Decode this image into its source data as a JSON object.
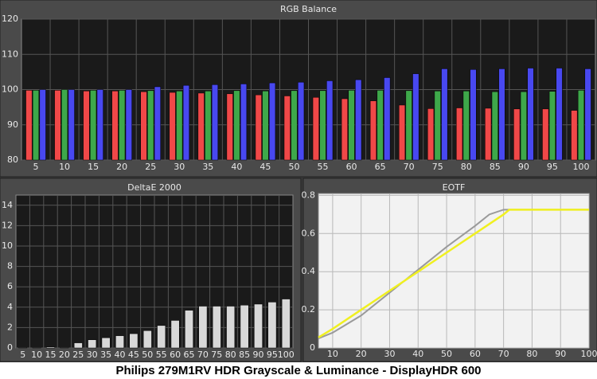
{
  "caption": "Philips 279M1RV HDR Grayscale & Luminance - DisplayHDR 600",
  "chart_data": [
    {
      "type": "bar",
      "title": "RGB Balance",
      "categories": [
        "5",
        "10",
        "15",
        "20",
        "25",
        "30",
        "35",
        "40",
        "45",
        "50",
        "55",
        "60",
        "65",
        "70",
        "75",
        "80",
        "85",
        "90",
        "95",
        "100"
      ],
      "series": [
        {
          "color": "#f04848",
          "values": [
            99.8,
            99.8,
            99.6,
            99.6,
            99.4,
            99.2,
            99.0,
            98.8,
            98.5,
            98.2,
            97.8,
            97.4,
            96.8,
            95.6,
            94.6,
            94.8,
            94.7,
            94.5,
            94.5,
            94.1
          ]
        },
        {
          "color": "#3ea84a",
          "values": [
            99.8,
            100.0,
            99.8,
            99.8,
            99.7,
            99.6,
            99.6,
            99.7,
            99.6,
            99.7,
            99.7,
            99.8,
            99.8,
            99.7,
            99.6,
            99.6,
            99.4,
            99.4,
            99.5,
            99.8
          ]
        },
        {
          "color": "#4848f0",
          "values": [
            100.0,
            100.0,
            100.0,
            100.0,
            100.8,
            101.2,
            101.4,
            101.6,
            101.9,
            102.1,
            102.5,
            102.8,
            103.4,
            104.5,
            105.9,
            105.7,
            105.9,
            106.1,
            106.1,
            105.9
          ]
        }
      ],
      "ylim": [
        80,
        120
      ],
      "yticks": [
        80,
        90,
        100,
        110,
        120
      ],
      "grid": true
    },
    {
      "type": "bar",
      "title": "DeltaE 2000",
      "categories": [
        "5",
        "10",
        "15",
        "20",
        "25",
        "30",
        "35",
        "40",
        "45",
        "50",
        "55",
        "60",
        "65",
        "70",
        "75",
        "80",
        "85",
        "90",
        "95",
        "100"
      ],
      "series": [
        {
          "color": "#d8d8d8",
          "values": [
            0.05,
            0.05,
            0.1,
            0.05,
            0.5,
            0.8,
            1.0,
            1.2,
            1.4,
            1.7,
            2.2,
            2.7,
            3.7,
            4.1,
            4.1,
            4.1,
            4.2,
            4.3,
            4.5,
            4.8
          ]
        }
      ],
      "ylim": [
        0,
        15
      ],
      "yticks": [
        0,
        2,
        4,
        6,
        8,
        10,
        12,
        14
      ],
      "grid": true
    },
    {
      "type": "line",
      "title": "EOTF",
      "series": [
        {
          "color": "#9a9a9a",
          "x": [
            5,
            10,
            20,
            30,
            40,
            50,
            60,
            65,
            70,
            72,
            100
          ],
          "values": [
            0.05,
            0.08,
            0.17,
            0.29,
            0.41,
            0.53,
            0.64,
            0.7,
            0.725,
            0.725,
            0.725
          ]
        },
        {
          "color": "#f0f020",
          "x": [
            5,
            10,
            20,
            30,
            40,
            50,
            60,
            70,
            72,
            80,
            100
          ],
          "values": [
            0.055,
            0.1,
            0.2,
            0.3,
            0.4,
            0.5,
            0.6,
            0.7,
            0.725,
            0.725,
            0.725
          ]
        }
      ],
      "xlim": [
        5,
        100
      ],
      "xticks": [
        10,
        20,
        30,
        40,
        50,
        60,
        70,
        80,
        90,
        100
      ],
      "ylim": [
        0,
        0.81
      ],
      "yticks": [
        0,
        0.2,
        0.4,
        0.6,
        0.8
      ],
      "grid": true
    }
  ]
}
